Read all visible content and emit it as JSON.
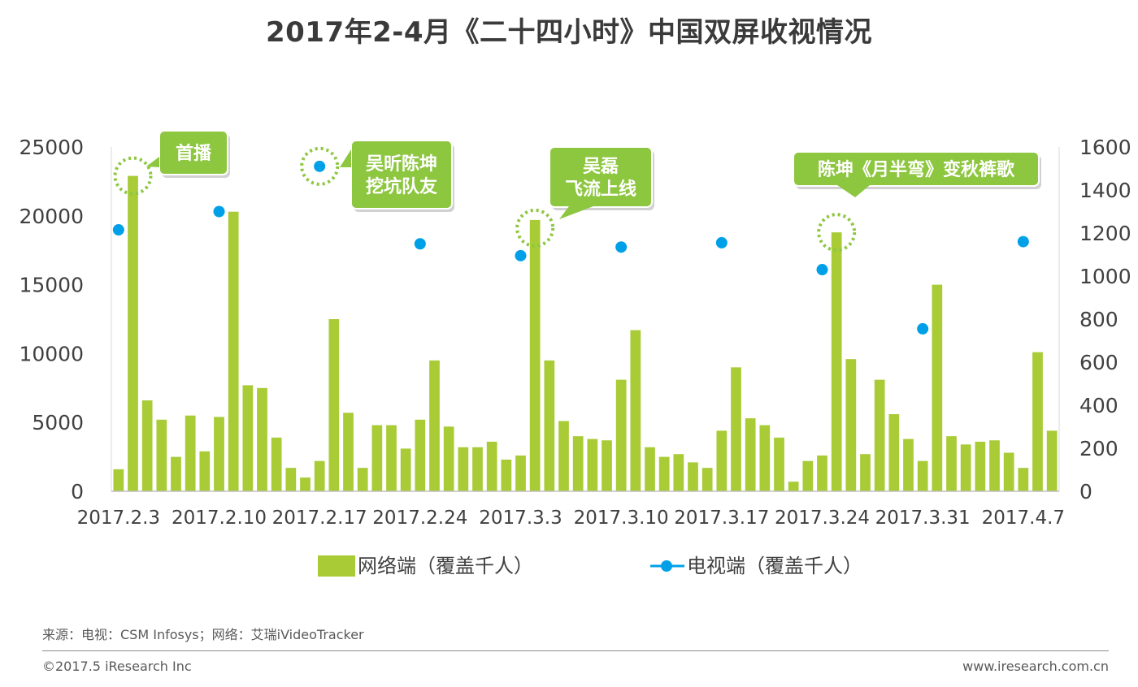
{
  "chart_data": {
    "type": "bar",
    "title": "2017年2-4月《二十四小时》中国双屏收视情况",
    "x_tick_labels": [
      "2017.2.3",
      "2017.2.10",
      "2017.2.17",
      "2017.2.24",
      "2017.3.3",
      "2017.3.10",
      "2017.3.17",
      "2017.3.24",
      "2017.3.31",
      "2017.4.7"
    ],
    "left_axis": {
      "ylim": [
        0,
        25000
      ],
      "ticks": [
        0,
        5000,
        10000,
        15000,
        20000,
        25000
      ]
    },
    "right_axis": {
      "ylim": [
        0,
        1600
      ],
      "ticks": [
        0,
        200,
        400,
        600,
        800,
        1000,
        1200,
        1400,
        1600
      ]
    },
    "grid": false,
    "legend_position": "bottom",
    "series": [
      {
        "name": "网络端（覆盖千人）",
        "type": "bar",
        "axis": "left",
        "color": "#a8cb36",
        "values": [
          1600,
          22900,
          6600,
          5200,
          2500,
          5500,
          2900,
          5400,
          20300,
          7700,
          7500,
          3900,
          1700,
          1000,
          2200,
          12500,
          5700,
          1700,
          4800,
          4800,
          3100,
          5200,
          9500,
          4700,
          3200,
          3200,
          3600,
          2300,
          2600,
          19700,
          9500,
          5100,
          4000,
          3800,
          3700,
          8100,
          11700,
          3200,
          2500,
          2700,
          2100,
          1700,
          4400,
          9000,
          5300,
          4800,
          3900,
          700,
          2200,
          2600,
          18800,
          9600,
          2700,
          8100,
          5600,
          3800,
          2200,
          15000,
          4000,
          3400,
          3600,
          3700,
          2800,
          1700,
          10100,
          4400
        ]
      },
      {
        "name": "电视端（覆盖千人）",
        "type": "scatter",
        "axis": "right",
        "color": "#00a0e9",
        "points": [
          {
            "x_index": 0,
            "value": 1215
          },
          {
            "x_index": 7,
            "value": 1300
          },
          {
            "x_index": 14,
            "value": 1510
          },
          {
            "x_index": 21,
            "value": 1150
          },
          {
            "x_index": 28,
            "value": 1095
          },
          {
            "x_index": 35,
            "value": 1135
          },
          {
            "x_index": 42,
            "value": 1155
          },
          {
            "x_index": 49,
            "value": 1030
          },
          {
            "x_index": 56,
            "value": 755
          },
          {
            "x_index": 63,
            "value": 1160
          }
        ]
      }
    ],
    "annotations": [
      {
        "text": [
          "首播"
        ],
        "x_index": 1
      },
      {
        "text": [
          "吴昕陈坤",
          "挖坑队友"
        ],
        "x_index": 14
      },
      {
        "text": [
          "吴磊",
          "飞流上线"
        ],
        "x_index": 29
      },
      {
        "text": [
          "陈坤《月半弯》变秋裤歌"
        ],
        "x_index": 50
      }
    ],
    "annotation_color": "#8dc63f"
  },
  "footer": {
    "source": "来源：电视：CSM Infosys；网络：艾瑞iVideoTracker",
    "copyright": "©2017.5 iResearch Inc",
    "website": "www.iresearch.com.cn"
  }
}
